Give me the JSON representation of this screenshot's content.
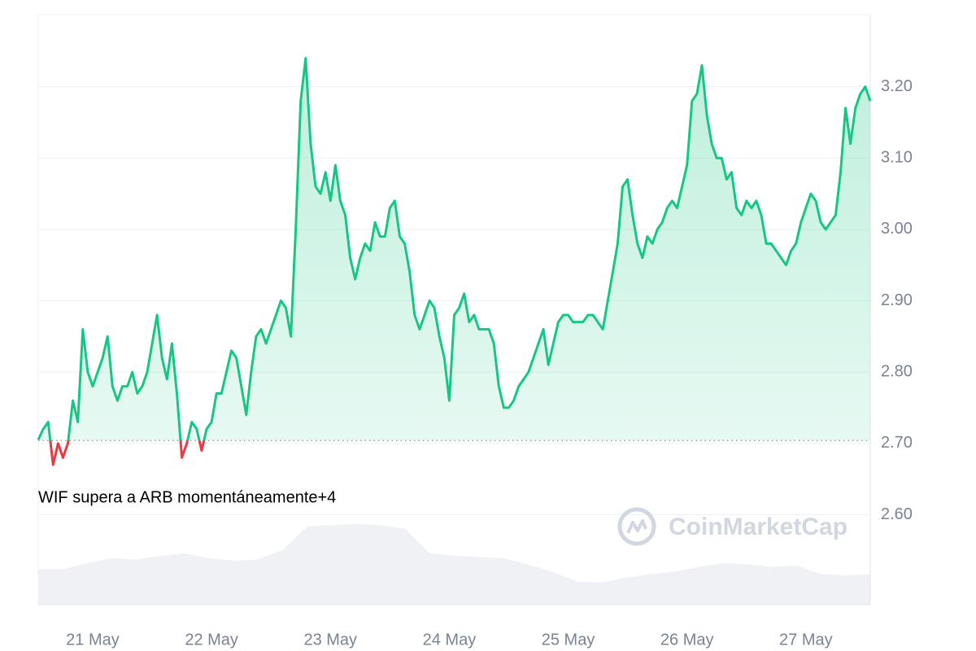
{
  "chart_data": {
    "type": "line",
    "annotation": "WIF supera a ARB momentáneamente+4",
    "watermark": "CoinMarketCap",
    "color": "#16c784",
    "negative_color": "#ea3943",
    "baseline": 2.704,
    "grid": true,
    "categories": [
      null,
      null,
      null,
      null,
      null,
      null,
      null,
      null,
      null,
      null,
      null,
      "21 May",
      null,
      null,
      null,
      null,
      null,
      null,
      null,
      null,
      null,
      null,
      null,
      null,
      null,
      null,
      null,
      null,
      null,
      null,
      null,
      null,
      null,
      null,
      null,
      "22 May",
      null,
      null,
      null,
      null,
      null,
      null,
      null,
      null,
      null,
      null,
      null,
      null,
      null,
      null,
      null,
      null,
      null,
      null,
      null,
      null,
      null,
      null,
      null,
      "23 May",
      null,
      null,
      null,
      null,
      null,
      null,
      null,
      null,
      null,
      null,
      null,
      null,
      null,
      null,
      null,
      null,
      null,
      null,
      null,
      null,
      null,
      null,
      null,
      "24 May",
      null,
      null,
      null,
      null,
      null,
      null,
      null,
      null,
      null,
      null,
      null,
      null,
      null,
      null,
      null,
      null,
      null,
      null,
      null,
      null,
      null,
      null,
      null,
      "25 May",
      null,
      null,
      null,
      null,
      null,
      null,
      null,
      null,
      null,
      null,
      null,
      null,
      null,
      null,
      null,
      null,
      null,
      null,
      null,
      null,
      null,
      null,
      null,
      "26 May",
      null,
      null,
      null,
      null,
      null,
      null,
      null,
      null,
      null,
      null,
      null,
      null,
      null,
      null,
      null,
      null,
      null,
      null,
      null,
      null,
      null,
      null,
      null,
      "27 May",
      null,
      null,
      null,
      null,
      null,
      null,
      null,
      null,
      null,
      null,
      null,
      null,
      null
    ],
    "values": [
      2.705,
      2.72,
      2.73,
      2.67,
      2.7,
      2.68,
      2.7,
      2.76,
      2.73,
      2.86,
      2.8,
      2.78,
      2.8,
      2.82,
      2.85,
      2.78,
      2.76,
      2.78,
      2.78,
      2.8,
      2.77,
      2.78,
      2.8,
      2.84,
      2.88,
      2.82,
      2.79,
      2.84,
      2.77,
      2.68,
      2.7,
      2.73,
      2.72,
      2.69,
      2.72,
      2.73,
      2.77,
      2.77,
      2.8,
      2.83,
      2.82,
      2.78,
      2.74,
      2.8,
      2.85,
      2.86,
      2.84,
      2.86,
      2.88,
      2.9,
      2.89,
      2.85,
      3.0,
      3.18,
      3.24,
      3.12,
      3.06,
      3.05,
      3.08,
      3.04,
      3.09,
      3.04,
      3.02,
      2.96,
      2.93,
      2.96,
      2.98,
      2.97,
      3.01,
      2.99,
      2.99,
      3.03,
      3.04,
      2.99,
      2.98,
      2.94,
      2.88,
      2.86,
      2.88,
      2.9,
      2.89,
      2.85,
      2.82,
      2.76,
      2.88,
      2.89,
      2.91,
      2.87,
      2.88,
      2.86,
      2.86,
      2.86,
      2.84,
      2.78,
      2.75,
      2.75,
      2.76,
      2.78,
      2.79,
      2.8,
      2.82,
      2.84,
      2.86,
      2.81,
      2.84,
      2.87,
      2.88,
      2.88,
      2.87,
      2.87,
      2.87,
      2.88,
      2.88,
      2.87,
      2.86,
      2.9,
      2.94,
      2.98,
      3.06,
      3.07,
      3.02,
      2.98,
      2.96,
      2.99,
      2.98,
      3.0,
      3.01,
      3.03,
      3.04,
      3.03,
      3.06,
      3.09,
      3.18,
      3.19,
      3.23,
      3.16,
      3.12,
      3.1,
      3.1,
      3.07,
      3.08,
      3.03,
      3.02,
      3.04,
      3.03,
      3.04,
      3.02,
      2.98,
      2.98,
      2.97,
      2.96,
      2.95,
      2.97,
      2.98,
      3.01,
      3.03,
      3.05,
      3.04,
      3.01,
      3.0,
      3.01,
      3.02,
      3.08,
      3.17,
      3.12,
      3.17,
      3.19,
      3.2,
      3.18
    ],
    "ylim": [
      2.474,
      3.301
    ],
    "yticks": [
      {
        "value": 2.6,
        "label": "2.60"
      },
      {
        "value": 2.7,
        "label": "2.70"
      },
      {
        "value": 2.8,
        "label": "2.80"
      },
      {
        "value": 2.9,
        "label": "2.90"
      },
      {
        "value": 3.0,
        "label": "3.00"
      },
      {
        "value": 3.1,
        "label": "3.10"
      },
      {
        "value": 3.2,
        "label": "3.20"
      }
    ],
    "volume": {
      "color": "#eff1f4",
      "ylim": [
        0,
        1
      ],
      "values": [
        0.29,
        0.29,
        0.34,
        0.38,
        0.37,
        0.4,
        0.42,
        0.38,
        0.36,
        0.37,
        0.45,
        0.64,
        0.65,
        0.66,
        0.65,
        0.62,
        0.42,
        0.4,
        0.39,
        0.38,
        0.33,
        0.27,
        0.19,
        0.18,
        0.22,
        0.25,
        0.27,
        0.31,
        0.34,
        0.33,
        0.31,
        0.32,
        0.25,
        0.24,
        0.25
      ]
    }
  }
}
